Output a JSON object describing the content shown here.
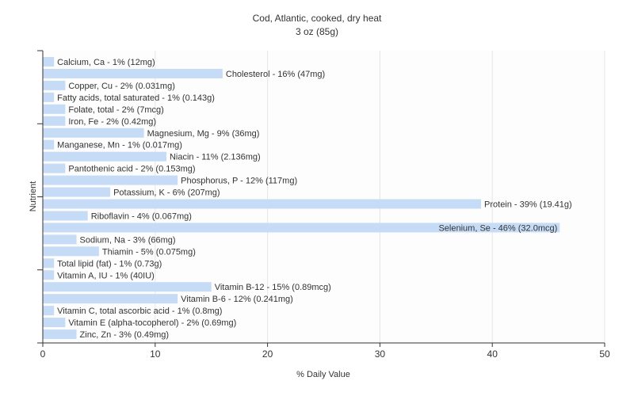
{
  "chart_data": {
    "type": "bar",
    "orientation": "horizontal",
    "title": "Cod, Atlantic, cooked, dry heat",
    "subtitle": "3 oz (85g)",
    "xlabel": "% Daily Value",
    "ylabel": "Nutrient",
    "xlim": [
      0,
      50
    ],
    "xticks": [
      0,
      10,
      20,
      30,
      40,
      50
    ],
    "grid": true,
    "bar_color": "#c6dcf6",
    "categories": [
      "Calcium, Ca",
      "Cholesterol",
      "Copper, Cu",
      "Fatty acids, total saturated",
      "Folate, total",
      "Iron, Fe",
      "Magnesium, Mg",
      "Manganese, Mn",
      "Niacin",
      "Pantothenic acid",
      "Phosphorus, P",
      "Potassium, K",
      "Protein",
      "Riboflavin",
      "Selenium, Se",
      "Sodium, Na",
      "Thiamin",
      "Total lipid (fat)",
      "Vitamin A, IU",
      "Vitamin B-12",
      "Vitamin B-6",
      "Vitamin C, total ascorbic acid",
      "Vitamin E (alpha-tocopherol)",
      "Zinc, Zn"
    ],
    "values": [
      1,
      16,
      2,
      1,
      2,
      2,
      9,
      1,
      11,
      2,
      12,
      6,
      39,
      4,
      46,
      3,
      5,
      1,
      1,
      15,
      12,
      1,
      2,
      3
    ],
    "labels": [
      "Calcium, Ca - 1% (12mg)",
      "Cholesterol - 16% (47mg)",
      "Copper, Cu - 2% (0.031mg)",
      "Fatty acids, total saturated - 1% (0.143g)",
      "Folate, total - 2% (7mcg)",
      "Iron, Fe - 2% (0.42mg)",
      "Magnesium, Mg - 9% (36mg)",
      "Manganese, Mn - 1% (0.017mg)",
      "Niacin - 11% (2.136mg)",
      "Pantothenic acid - 2% (0.153mg)",
      "Phosphorus, P - 12% (117mg)",
      "Potassium, K - 6% (207mg)",
      "Protein - 39% (19.41g)",
      "Riboflavin - 4% (0.067mg)",
      "Selenium, Se - 46% (32.0mcg)",
      "Sodium, Na - 3% (66mg)",
      "Thiamin - 5% (0.075mg)",
      "Total lipid (fat) - 1% (0.73g)",
      "Vitamin A, IU - 1% (40IU)",
      "Vitamin B-12 - 15% (0.89mcg)",
      "Vitamin B-6 - 12% (0.241mg)",
      "Vitamin C, total ascorbic acid - 1% (0.8mg)",
      "Vitamin E (alpha-tocopherol) - 2% (0.69mg)",
      "Zinc, Zn - 3% (0.49mg)"
    ]
  }
}
